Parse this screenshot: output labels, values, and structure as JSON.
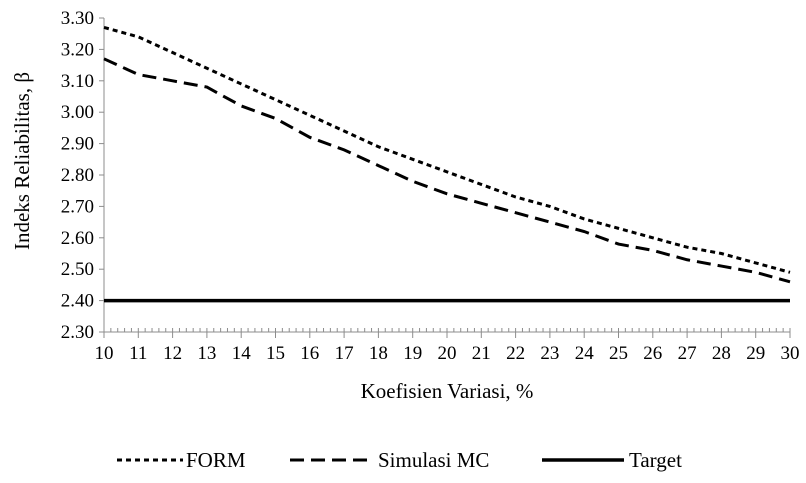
{
  "chart_data": {
    "type": "line",
    "title": "",
    "xlabel": "Koefisien Variasi, %",
    "ylabel": "Indeks Reliabilitas, β",
    "x": [
      10,
      11,
      12,
      13,
      14,
      15,
      16,
      17,
      18,
      19,
      20,
      21,
      22,
      23,
      24,
      25,
      26,
      27,
      28,
      29,
      30
    ],
    "x_tick_labels": [
      "10",
      "11",
      "12",
      "13",
      "14",
      "15",
      "16",
      "17",
      "18",
      "19",
      "20",
      "21",
      "22",
      "23",
      "24",
      "25",
      "26",
      "27",
      "28",
      "29",
      "30"
    ],
    "xlim": [
      10,
      30
    ],
    "ylim": [
      2.3,
      3.3
    ],
    "y_ticks": [
      2.3,
      2.4,
      2.5,
      2.6,
      2.7,
      2.8,
      2.9,
      3.0,
      3.1,
      3.2,
      3.3
    ],
    "y_tick_labels": [
      "2.30",
      "2.40",
      "2.50",
      "2.60",
      "2.70",
      "2.80",
      "2.90",
      "3.00",
      "3.10",
      "3.20",
      "3.30"
    ],
    "grid": false,
    "legend_position": "bottom",
    "series": [
      {
        "name": "FORM",
        "style": "short-dash",
        "color": "#000000",
        "values": [
          3.27,
          3.24,
          3.19,
          3.14,
          3.09,
          3.04,
          2.99,
          2.94,
          2.89,
          2.85,
          2.81,
          2.77,
          2.73,
          2.7,
          2.66,
          2.63,
          2.6,
          2.57,
          2.55,
          2.52,
          2.49
        ]
      },
      {
        "name": "Simulasi MC",
        "style": "long-dash",
        "color": "#000000",
        "values": [
          3.17,
          3.12,
          3.1,
          3.08,
          3.02,
          2.98,
          2.92,
          2.88,
          2.83,
          2.78,
          2.74,
          2.71,
          2.68,
          2.65,
          2.62,
          2.58,
          2.56,
          2.53,
          2.51,
          2.49,
          2.46
        ]
      },
      {
        "name": "Target",
        "style": "solid",
        "color": "#000000",
        "values": [
          2.4,
          2.4,
          2.4,
          2.4,
          2.4,
          2.4,
          2.4,
          2.4,
          2.4,
          2.4,
          2.4,
          2.4,
          2.4,
          2.4,
          2.4,
          2.4,
          2.4,
          2.4,
          2.4,
          2.4,
          2.4
        ]
      }
    ]
  }
}
